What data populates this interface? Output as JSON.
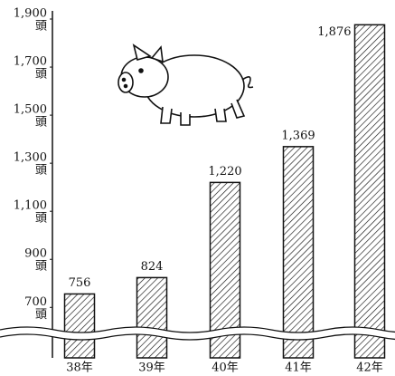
{
  "chart_data": {
    "type": "bar",
    "categories": [
      "38年",
      "39年",
      "40年",
      "41年",
      "42年"
    ],
    "values": [
      756,
      824,
      1220,
      1369,
      1876
    ],
    "value_labels": [
      "756",
      "824",
      "1,220",
      "1,369",
      "1,876"
    ],
    "y_unit": "頭",
    "ylim": [
      490,
      1900
    ],
    "yticks": [
      {
        "value": 700,
        "label": "700"
      },
      {
        "value": 900,
        "label": "900"
      },
      {
        "value": 1100,
        "label": "1,100"
      },
      {
        "value": 1300,
        "label": "1,300"
      },
      {
        "value": 1500,
        "label": "1,500"
      },
      {
        "value": 1700,
        "label": "1,700"
      },
      {
        "value": 1900,
        "label": "1,900"
      }
    ],
    "color": "#111111"
  }
}
